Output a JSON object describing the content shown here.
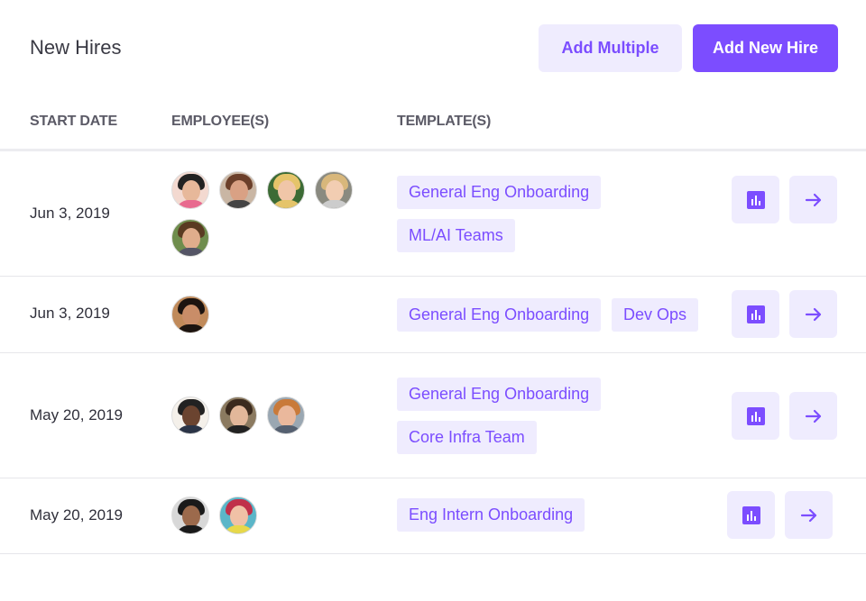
{
  "header": {
    "title": "New Hires",
    "add_multiple": "Add Multiple",
    "add_new_hire": "Add New Hire"
  },
  "columns": {
    "start_date": "START DATE",
    "employees": "EMPLOYEE(S)",
    "templates": "TEMPLATE(S)"
  },
  "colors": {
    "accent": "#7c4dff",
    "accent_light": "#efecfe"
  },
  "rows": [
    {
      "date": "Jun 3, 2019",
      "employee_count": 5,
      "templates": [
        "General Eng Onboarding",
        "ML/AI Teams"
      ]
    },
    {
      "date": "Jun 3, 2019",
      "employee_count": 1,
      "templates": [
        "General Eng Onboarding",
        "Dev Ops"
      ]
    },
    {
      "date": "May 20, 2019",
      "employee_count": 3,
      "templates": [
        "General Eng Onboarding",
        "Core Infra Team"
      ]
    },
    {
      "date": "May 20, 2019",
      "employee_count": 2,
      "templates": [
        "Eng Intern Onboarding"
      ]
    }
  ]
}
